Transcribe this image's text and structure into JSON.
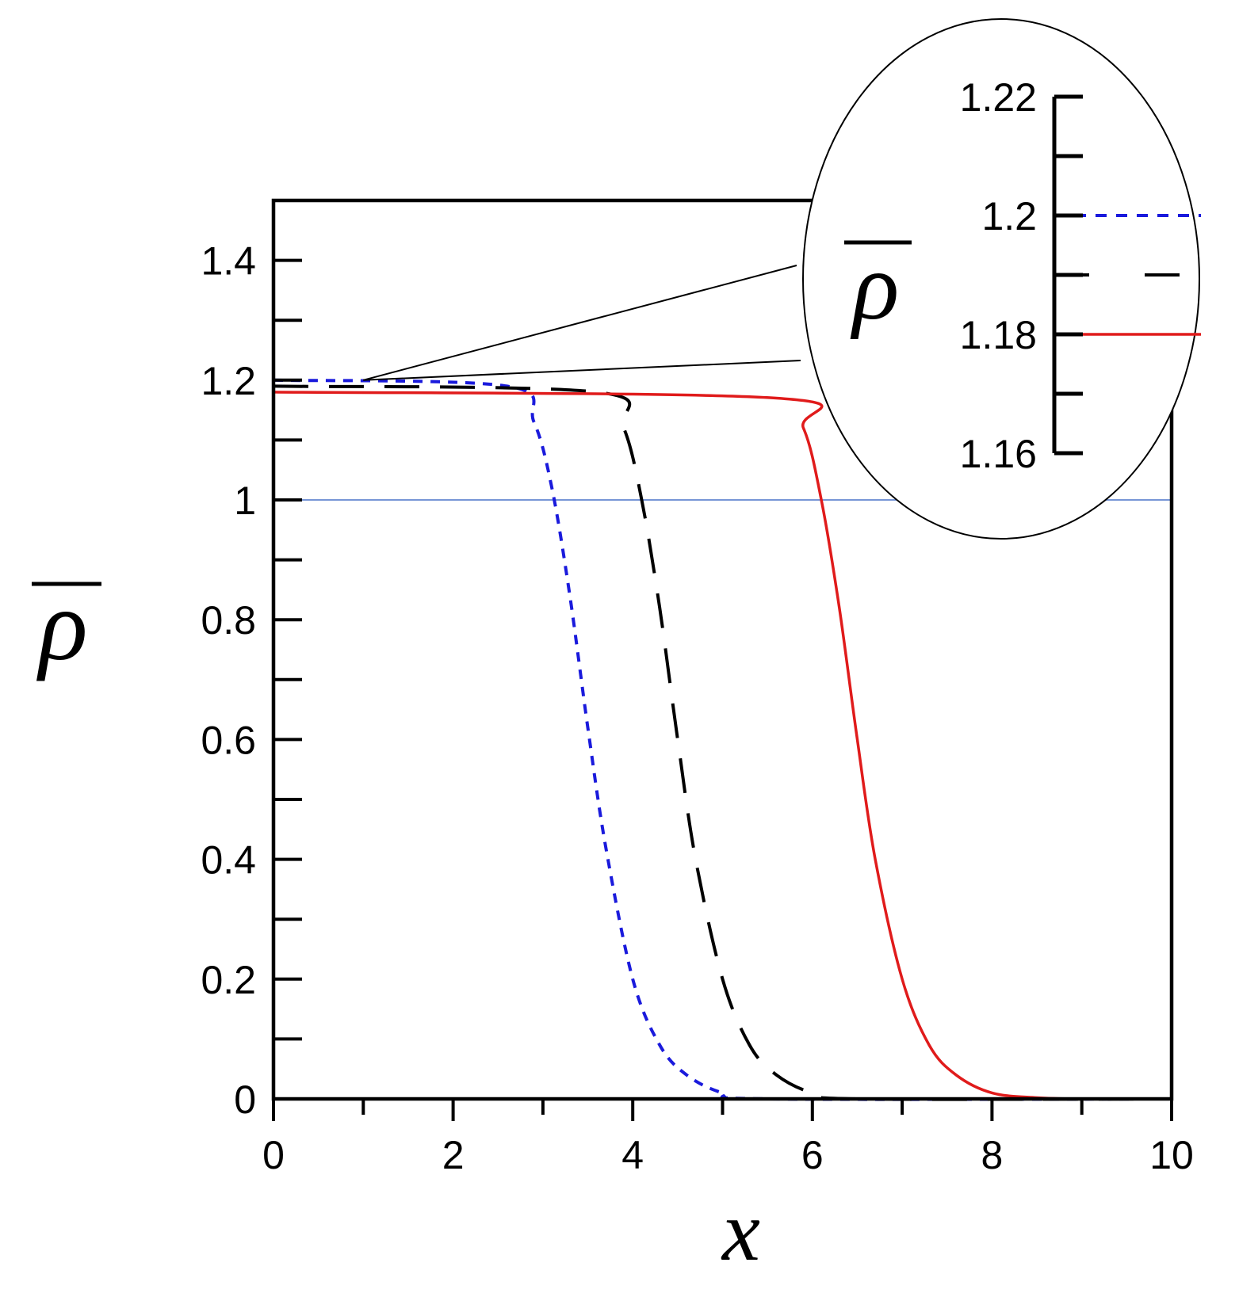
{
  "chart_data": {
    "type": "line",
    "xlabel": "x",
    "ylabel": "ρ",
    "xlim": [
      0,
      10
    ],
    "ylim": [
      0,
      1.5
    ],
    "x_ticks": [
      "0",
      "2",
      "4",
      "6",
      "8",
      "10"
    ],
    "y_ticks": [
      "0",
      "0.2",
      "0.4",
      "0.6",
      "0.8",
      "1",
      "1.2",
      "1.4"
    ],
    "reference_line": {
      "y": 1,
      "color": "#4a74c9"
    },
    "series": [
      {
        "style": "dotted",
        "color": "#1a1adc",
        "x": [
          0,
          2.6,
          2.9,
          3.1,
          3.3,
          3.5,
          3.7,
          4.0,
          4.3,
          4.6,
          5.0,
          5.5,
          10
        ],
        "y": [
          1.2,
          1.19,
          1.13,
          1.02,
          0.84,
          0.62,
          0.42,
          0.2,
          0.09,
          0.04,
          0.01,
          0.0,
          0.0
        ]
      },
      {
        "style": "dashed",
        "color": "#000000",
        "x": [
          0,
          3.6,
          3.9,
          4.1,
          4.3,
          4.5,
          4.7,
          5.0,
          5.3,
          5.6,
          6.0,
          6.5,
          10
        ],
        "y": [
          1.19,
          1.18,
          1.12,
          1.0,
          0.82,
          0.6,
          0.4,
          0.2,
          0.09,
          0.04,
          0.01,
          0.0,
          0.0
        ]
      },
      {
        "style": "solid",
        "color": "#e01b1b",
        "x": [
          0,
          5.6,
          5.9,
          6.1,
          6.3,
          6.5,
          6.7,
          7.0,
          7.3,
          7.6,
          8.0,
          8.5,
          9.0,
          10
        ],
        "y": [
          1.18,
          1.17,
          1.12,
          1.0,
          0.82,
          0.6,
          0.4,
          0.2,
          0.09,
          0.04,
          0.01,
          0.002,
          0.0,
          0.0
        ]
      }
    ],
    "inset": {
      "ylabel": "ρ",
      "ylim": [
        1.16,
        1.22
      ],
      "y_ticks": [
        "1.16",
        "1.18",
        "1.2",
        "1.22"
      ],
      "levels": [
        {
          "style": "dotted",
          "color": "#1a1adc",
          "y": 1.2
        },
        {
          "style": "dashed",
          "color": "#000000",
          "y": 1.19
        },
        {
          "style": "solid",
          "color": "#e01b1b",
          "y": 1.18
        }
      ]
    }
  }
}
